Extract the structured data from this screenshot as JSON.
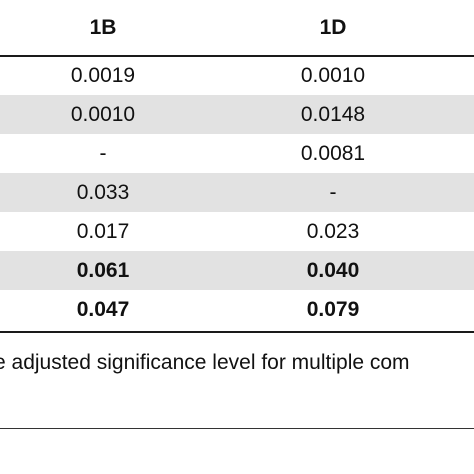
{
  "table": {
    "headers": [
      "1B",
      "1D"
    ],
    "rows": [
      {
        "b": "0.0019",
        "d": "0.0010",
        "bold": false
      },
      {
        "b": "0.0010",
        "d": "0.0148",
        "bold": false
      },
      {
        "b": "-",
        "d": "0.0081",
        "bold": false
      },
      {
        "b": "0.033",
        "d": "-",
        "bold": false
      },
      {
        "b": "0.017",
        "d": "0.023",
        "bold": false
      },
      {
        "b": "0.061",
        "d": "0.040",
        "bold": true
      },
      {
        "b": "0.047",
        "d": "0.079",
        "bold": true
      }
    ]
  },
  "footnote": "e adjusted significance level for multiple com"
}
